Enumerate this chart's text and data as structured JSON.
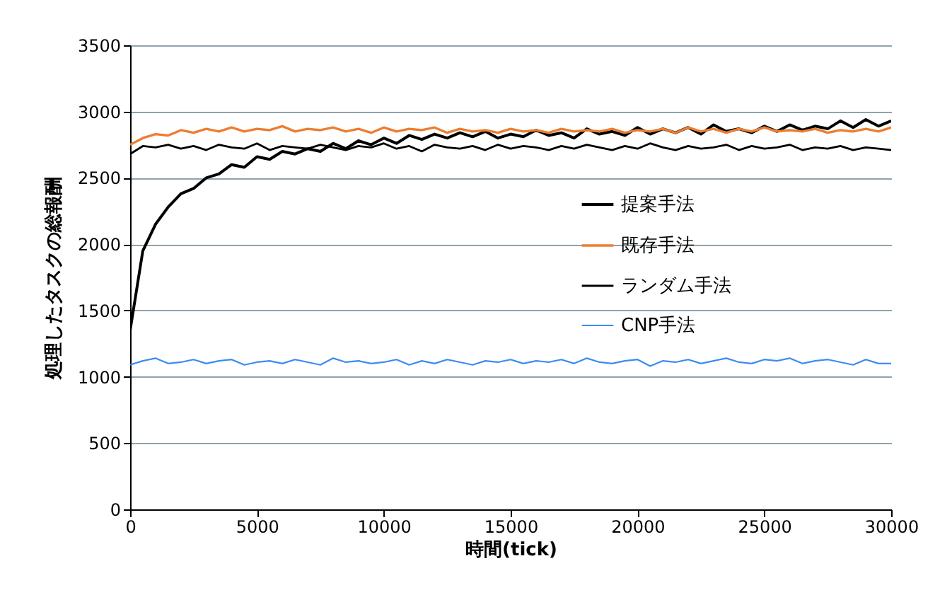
{
  "chart_data": {
    "type": "line",
    "xlabel": "時間(tick)",
    "ylabel": "処理したタスクの総報酬",
    "x": [
      0,
      500,
      1000,
      1500,
      2000,
      2500,
      3000,
      3500,
      4000,
      4500,
      5000,
      5500,
      6000,
      6500,
      7000,
      7500,
      8000,
      8500,
      9000,
      9500,
      10000,
      10500,
      11000,
      11500,
      12000,
      12500,
      13000,
      13500,
      14000,
      14500,
      15000,
      15500,
      16000,
      16500,
      17000,
      17500,
      18000,
      18500,
      19000,
      19500,
      20000,
      20500,
      21000,
      21500,
      22000,
      22500,
      23000,
      23500,
      24000,
      24500,
      25000,
      25500,
      26000,
      26500,
      27000,
      27500,
      28000,
      28500,
      29000,
      29500,
      30000
    ],
    "series": [
      {
        "name": "提案手法",
        "color": "#000000",
        "values": [
          1350,
          1950,
          2150,
          2280,
          2380,
          2420,
          2500,
          2530,
          2600,
          2580,
          2660,
          2640,
          2700,
          2680,
          2720,
          2700,
          2760,
          2720,
          2780,
          2750,
          2800,
          2760,
          2820,
          2790,
          2830,
          2800,
          2840,
          2810,
          2850,
          2800,
          2830,
          2810,
          2860,
          2820,
          2840,
          2800,
          2870,
          2830,
          2850,
          2820,
          2880,
          2830,
          2870,
          2840,
          2880,
          2830,
          2900,
          2850,
          2870,
          2840,
          2890,
          2850,
          2900,
          2860,
          2890,
          2870,
          2930,
          2880,
          2940,
          2890,
          2930
        ]
      },
      {
        "name": "既存手法",
        "color": "#ed7d31",
        "values": [
          2750,
          2800,
          2830,
          2820,
          2860,
          2840,
          2870,
          2850,
          2880,
          2850,
          2870,
          2860,
          2890,
          2850,
          2870,
          2860,
          2880,
          2850,
          2870,
          2840,
          2880,
          2850,
          2870,
          2860,
          2880,
          2840,
          2870,
          2850,
          2860,
          2840,
          2870,
          2850,
          2860,
          2840,
          2870,
          2850,
          2860,
          2850,
          2870,
          2840,
          2860,
          2850,
          2870,
          2840,
          2880,
          2850,
          2870,
          2840,
          2870,
          2850,
          2880,
          2850,
          2860,
          2850,
          2870,
          2840,
          2860,
          2850,
          2870,
          2850,
          2880
        ]
      },
      {
        "name": "ランダム手法",
        "color": "#000000",
        "values": [
          2680,
          2740,
          2730,
          2750,
          2720,
          2740,
          2710,
          2750,
          2730,
          2720,
          2760,
          2710,
          2740,
          2730,
          2720,
          2750,
          2730,
          2710,
          2740,
          2730,
          2760,
          2720,
          2740,
          2700,
          2750,
          2730,
          2720,
          2740,
          2710,
          2750,
          2720,
          2740,
          2730,
          2710,
          2740,
          2720,
          2750,
          2730,
          2710,
          2740,
          2720,
          2760,
          2730,
          2710,
          2740,
          2720,
          2730,
          2750,
          2710,
          2740,
          2720,
          2730,
          2750,
          2710,
          2730,
          2720,
          2740,
          2710,
          2730,
          2720,
          2710
        ]
      },
      {
        "name": "CNP手法",
        "color": "#3c8cf0",
        "values": [
          1090,
          1120,
          1140,
          1100,
          1110,
          1130,
          1100,
          1120,
          1130,
          1090,
          1110,
          1120,
          1100,
          1130,
          1110,
          1090,
          1140,
          1110,
          1120,
          1100,
          1110,
          1130,
          1090,
          1120,
          1100,
          1130,
          1110,
          1090,
          1120,
          1110,
          1130,
          1100,
          1120,
          1110,
          1130,
          1100,
          1140,
          1110,
          1100,
          1120,
          1130,
          1080,
          1120,
          1110,
          1130,
          1100,
          1120,
          1140,
          1110,
          1100,
          1130,
          1120,
          1140,
          1100,
          1120,
          1130,
          1110,
          1090,
          1130,
          1100,
          1100
        ]
      }
    ],
    "xlim": [
      0,
      30000
    ],
    "ylim": [
      0,
      3500
    ],
    "xticks": [
      0,
      5000,
      10000,
      15000,
      20000,
      25000,
      30000
    ],
    "yticks": [
      0,
      500,
      1000,
      1500,
      2000,
      2500,
      3000,
      3500
    ],
    "grid": "y",
    "legend": "right"
  }
}
